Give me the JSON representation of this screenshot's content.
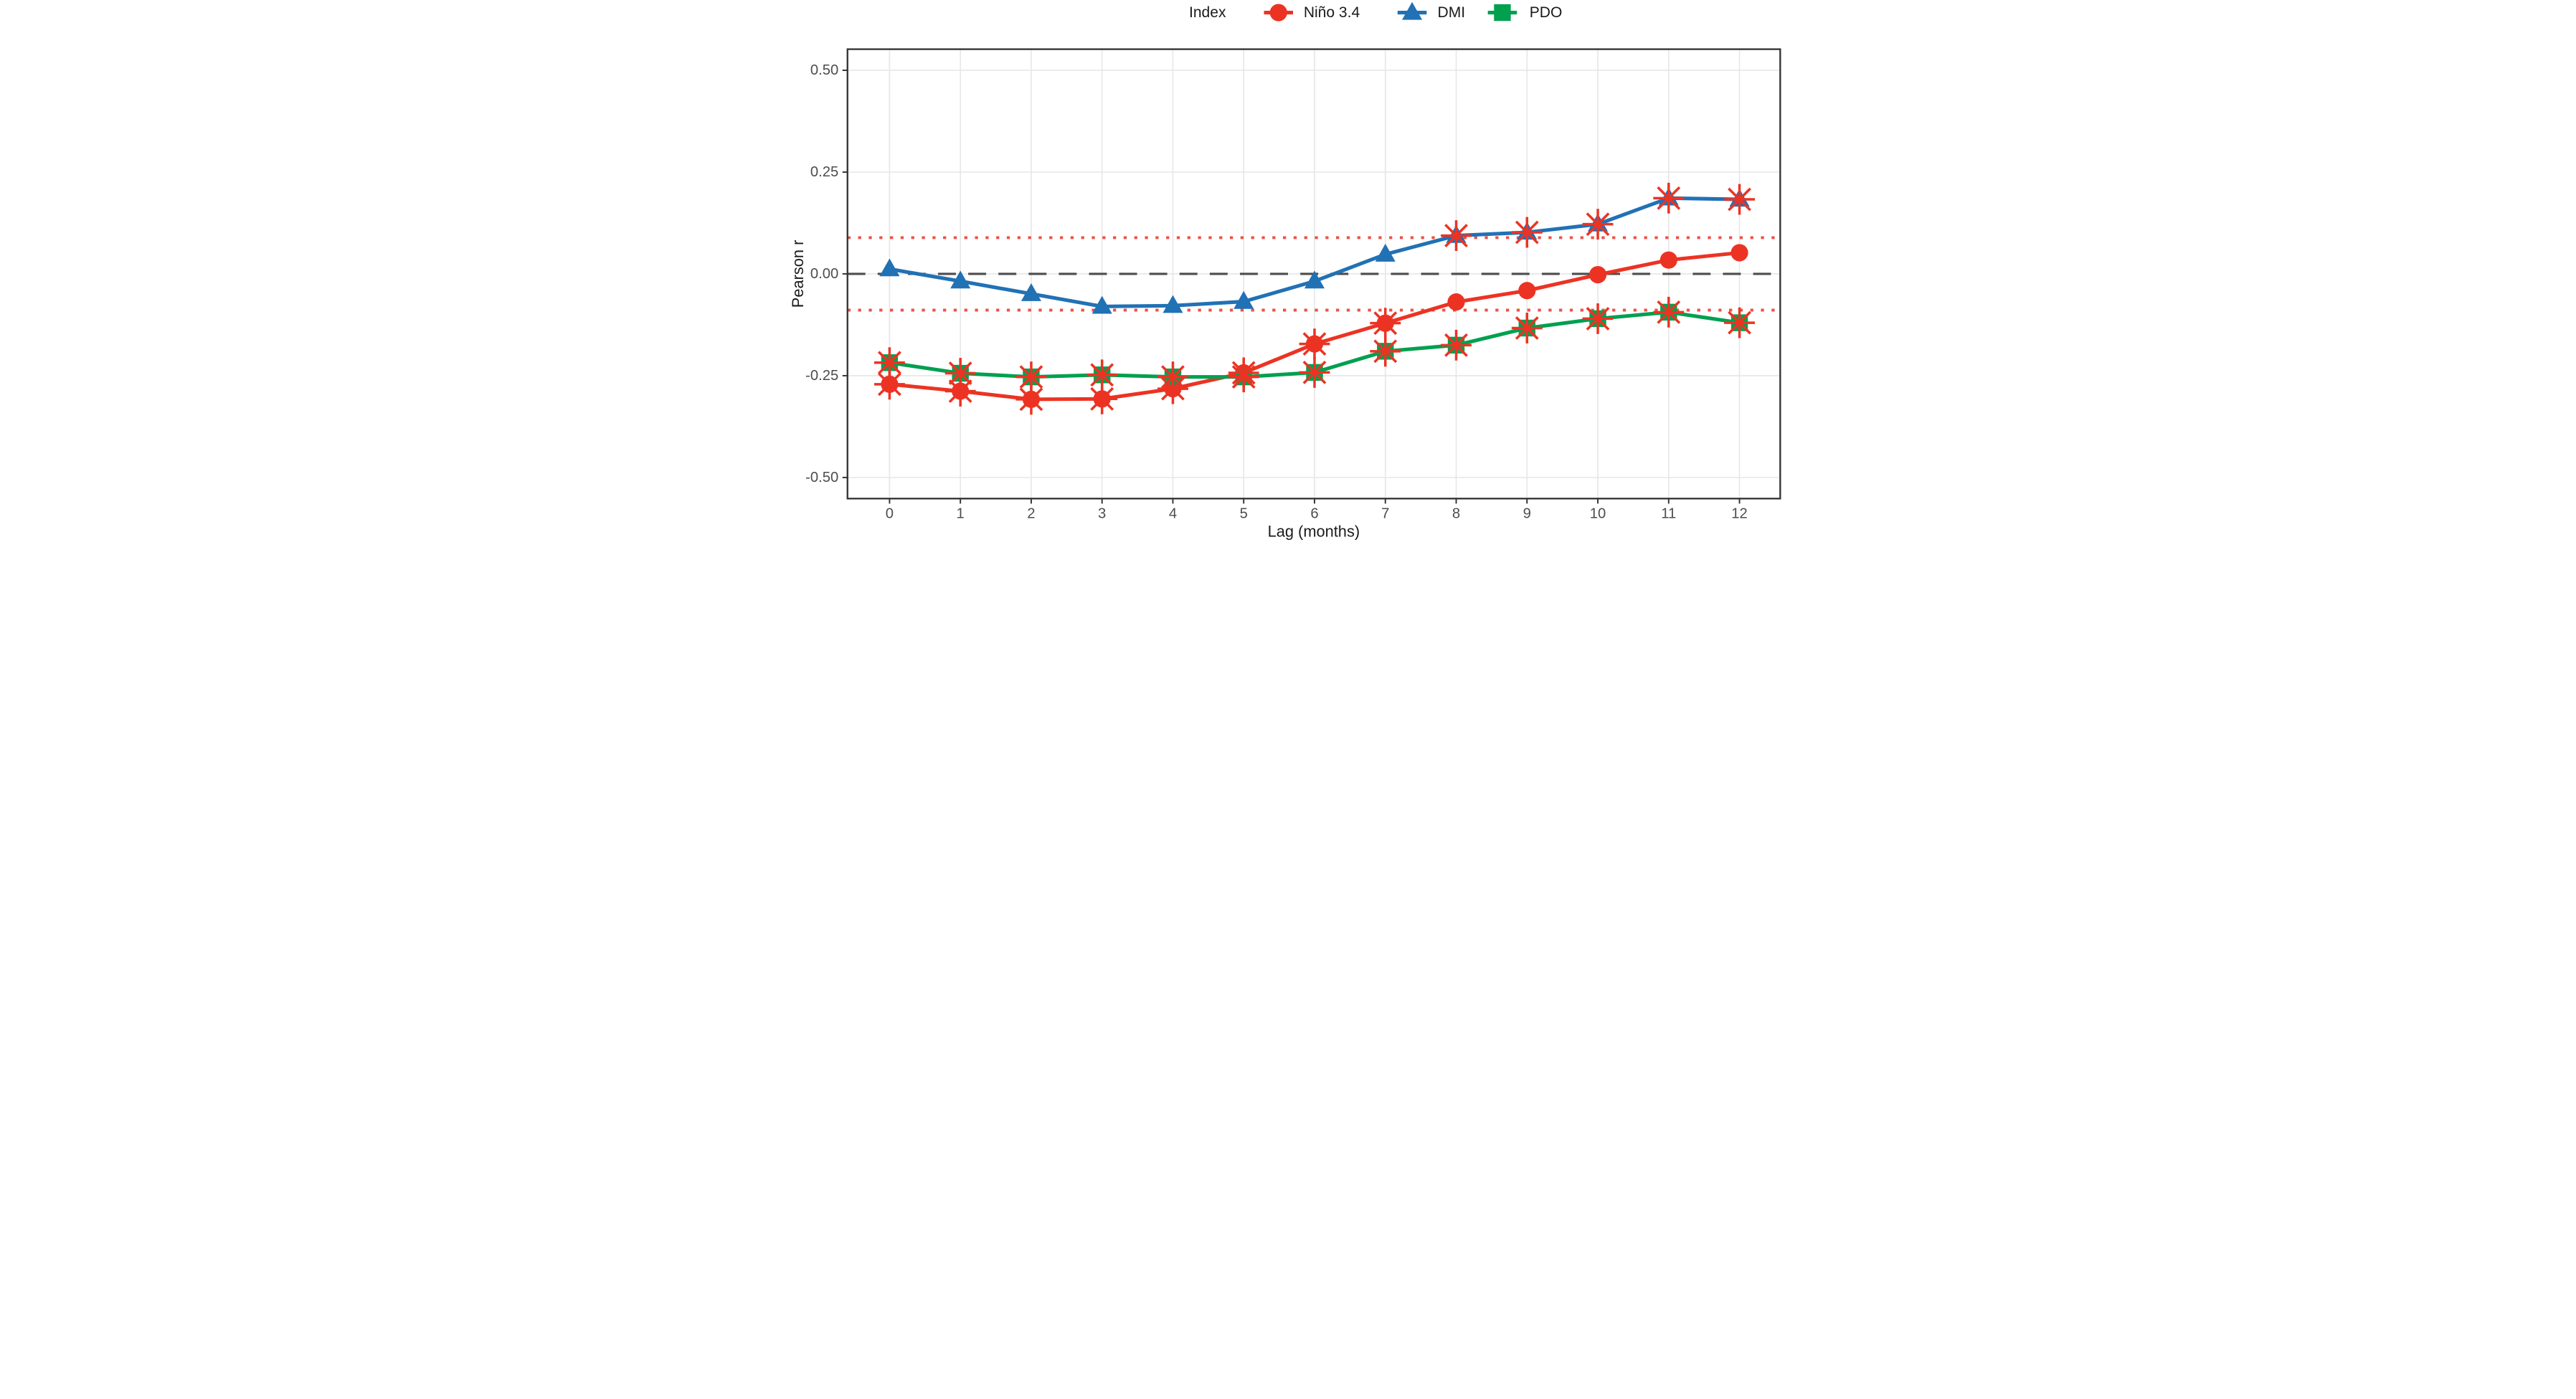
{
  "legend": {
    "title": "Index",
    "items": [
      {
        "label": "Niño 3.4",
        "color": "#ec3323",
        "marker": "circle"
      },
      {
        "label": "DMI",
        "color": "#2171b5",
        "marker": "triangle"
      },
      {
        "label": "PDO",
        "color": "#00a04f",
        "marker": "square"
      }
    ]
  },
  "chart_data": {
    "type": "line",
    "title": "",
    "xlabel": "Lag (months)",
    "ylabel": "Pearson r",
    "x": [
      0,
      1,
      2,
      3,
      4,
      5,
      6,
      7,
      8,
      9,
      10,
      11,
      12
    ],
    "xticks": [
      "0",
      "1",
      "2",
      "3",
      "4",
      "5",
      "6",
      "7",
      "8",
      "9",
      "10",
      "11",
      "12"
    ],
    "yticks": [
      0.5,
      0.25,
      0.0,
      -0.25,
      -0.5
    ],
    "ytick_labels": [
      "0.50",
      "0.25",
      "0.00",
      "-0.25",
      "-0.50"
    ],
    "xlim": [
      -0.59,
      12.58
    ],
    "ylim": [
      -0.552,
      0.552
    ],
    "grid": true,
    "legend_position": "top center",
    "panel_border_color": "#333333",
    "grid_color": "#e6e6e6",
    "series": [
      {
        "name": "Niño 3.4",
        "color": "#ec3323",
        "marker": "circle",
        "values": [
          -0.271,
          -0.288,
          -0.308,
          -0.307,
          -0.282,
          -0.243,
          -0.172,
          -0.121,
          -0.069,
          -0.041,
          -0.002,
          0.034,
          0.052
        ],
        "significant_lags": [
          0,
          1,
          2,
          3,
          4,
          5,
          6,
          7
        ]
      },
      {
        "name": "DMI",
        "color": "#2171b5",
        "marker": "triangle",
        "values": [
          0.012,
          -0.018,
          -0.049,
          -0.08,
          -0.078,
          -0.068,
          -0.018,
          0.048,
          0.094,
          0.102,
          0.122,
          0.186,
          0.183
        ],
        "significant_lags": [
          8,
          9,
          10,
          11,
          12
        ]
      },
      {
        "name": "PDO",
        "color": "#00a04f",
        "marker": "square",
        "values": [
          -0.218,
          -0.244,
          -0.253,
          -0.248,
          -0.253,
          -0.253,
          -0.242,
          -0.19,
          -0.175,
          -0.133,
          -0.11,
          -0.094,
          -0.12
        ],
        "significant_lags": [
          0,
          1,
          2,
          3,
          4,
          5,
          6,
          7,
          8,
          9,
          10,
          11,
          12
        ]
      }
    ],
    "reference_lines": [
      {
        "y": 0.0,
        "style": "dashed",
        "color": "#4d4d4d",
        "meaning": "zero correlation"
      },
      {
        "y": 0.089,
        "style": "dotted",
        "color": "#ec3323",
        "meaning": "upper significance threshold"
      },
      {
        "y": -0.089,
        "style": "dotted",
        "color": "#ec3323",
        "meaning": "lower significance threshold"
      }
    ],
    "significance": {
      "threshold_abs": 0.089,
      "marker": "red eight-spoke asterisk overlaid on significant points",
      "color": "#ec3323"
    }
  }
}
